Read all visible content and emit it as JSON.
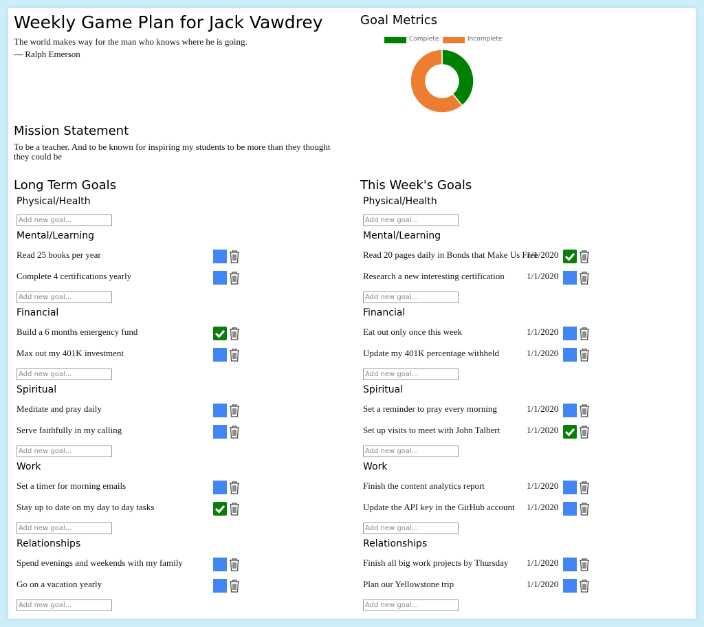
{
  "header": {
    "title": "Weekly Game Plan for Jack Vawdrey",
    "quote": "The world makes way for the man who knows where he is going.",
    "author": "— Ralph Emerson"
  },
  "mission": {
    "heading": "Mission Statement",
    "text": "To be a teacher. And to be known for inspiring my students to be more than they thought they could be"
  },
  "chart_data": {
    "type": "pie",
    "donut": true,
    "title": "Goal Metrics",
    "categories": [
      "Complete",
      "Incomplete"
    ],
    "values": [
      39,
      61
    ],
    "colors": [
      "#008000",
      "#ed7d31"
    ],
    "legend": "top"
  },
  "long_term": {
    "heading": "Long Term Goals",
    "categories": [
      {
        "name": "Physical/Health",
        "goals": [],
        "placeholder": "Add new goal..."
      },
      {
        "name": "Mental/Learning",
        "goals": [
          {
            "text": "Read 25 books per year",
            "done": false
          },
          {
            "text": "Complete 4 certifications yearly",
            "done": false
          }
        ],
        "placeholder": "Add new goal..."
      },
      {
        "name": "Financial",
        "goals": [
          {
            "text": "Build a 6 months emergency fund",
            "done": true
          },
          {
            "text": "Max out my 401K investment",
            "done": false
          }
        ],
        "placeholder": "Add new goal..."
      },
      {
        "name": "Spiritual",
        "goals": [
          {
            "text": "Meditate and pray daily",
            "done": false
          },
          {
            "text": "Serve faithfully in my calling",
            "done": false
          }
        ],
        "placeholder": "Add new goal..."
      },
      {
        "name": "Work",
        "goals": [
          {
            "text": "Set a timer for morning emails",
            "done": false
          },
          {
            "text": "Stay up to date on my day to day tasks",
            "done": true
          }
        ],
        "placeholder": "Add new goal..."
      },
      {
        "name": "Relationships",
        "goals": [
          {
            "text": "Spend evenings and weekends with my family",
            "done": false
          },
          {
            "text": "Go on a vacation yearly",
            "done": false
          }
        ],
        "placeholder": "Add new goal..."
      }
    ]
  },
  "weekly": {
    "heading": "This Week's Goals",
    "categories": [
      {
        "name": "Physical/Health",
        "goals": [],
        "placeholder": "Add new goal..."
      },
      {
        "name": "Mental/Learning",
        "goals": [
          {
            "text": "Read 20 pages daily in Bonds that Make Us Free",
            "date": "1/1/2020",
            "done": true
          },
          {
            "text": "Research a new interesting certification",
            "date": "1/1/2020",
            "done": false
          }
        ],
        "placeholder": "Add new goal..."
      },
      {
        "name": "Financial",
        "goals": [
          {
            "text": "Eat out only once this week",
            "date": "1/1/2020",
            "done": false
          },
          {
            "text": "Update my 401K percentage withheld",
            "date": "1/1/2020",
            "done": false
          }
        ],
        "placeholder": "Add new goal..."
      },
      {
        "name": "Spiritual",
        "goals": [
          {
            "text": "Set a reminder to pray every morning",
            "date": "1/1/2020",
            "done": false
          },
          {
            "text": "Set up visits to meet with John Talbert",
            "date": "1/1/2020",
            "done": true
          }
        ],
        "placeholder": "Add new goal..."
      },
      {
        "name": "Work",
        "goals": [
          {
            "text": "Finish the content analytics report",
            "date": "1/1/2020",
            "done": false
          },
          {
            "text": "Update the API key in the GitHub account",
            "date": "1/1/2020",
            "done": false
          }
        ],
        "placeholder": "Add new goal..."
      },
      {
        "name": "Relationships",
        "goals": [
          {
            "text": "Finish all big work projects by Thursday",
            "date": "1/1/2020",
            "done": false
          },
          {
            "text": "Plan our Yellowstone trip",
            "date": "1/1/2020",
            "done": false
          }
        ],
        "placeholder": "Add new goal..."
      }
    ]
  }
}
